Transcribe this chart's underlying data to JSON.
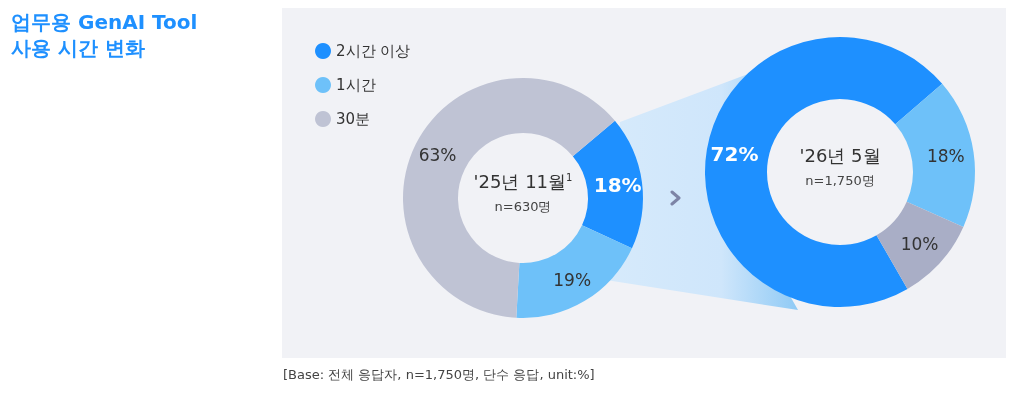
{
  "chart_data": [
    {
      "type": "donut",
      "title": "업무용 GenAI Tool 사용 시간 변화",
      "subtitle": "'25년 11월$^{1}$",
      "xlabel": "n=630명",
      "categories": [
        "2시간 이상",
        "1시간",
        "30분"
      ],
      "values": [
        18,
        19,
        63
      ],
      "colors": [
        "#1e90ff",
        "#6ec1f9",
        "#bfc3d4"
      ],
      "value_labels": [
        "18%",
        "19%",
        "63%"
      ],
      "legend": "top left",
      "annotations": [
        "[Base: 전체 응답자, n=1,750명, 단수 응답, unit:%]"
      ]
    },
    {
      "type": "donut",
      "subtitle": "'26년 5월",
      "xlabel": "n=1,750명",
      "categories": [
        null,
        null,
        null
      ],
      "values": [
        72,
        18,
        10
      ],
      "colors": [
        "#1e90ff",
        "#6ec1f9",
        "#a9aec6"
      ],
      "value_labels": [
        "72%",
        "18%",
        "10%"
      ]
    }
  ]
}
